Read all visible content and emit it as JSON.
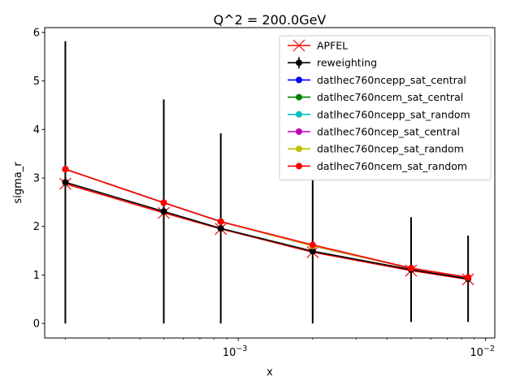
{
  "chart_data": {
    "type": "line",
    "title": "Q^2 = 200.0GeV",
    "xlabel": "x",
    "ylabel": "sigma_r",
    "xscale": "log",
    "xlim": [
      0.000165,
      0.0109
    ],
    "ylim": [
      -0.3,
      6.1
    ],
    "x": [
      0.0002,
      0.0005,
      0.00085,
      0.002,
      0.005,
      0.0085
    ],
    "x_tick_labels": [
      {
        "value": 0.001,
        "base": "10",
        "exp": "−3"
      },
      {
        "value": 0.01,
        "base": "10",
        "exp": "−2"
      }
    ],
    "y_ticks": [
      0,
      1,
      2,
      3,
      4,
      5,
      6
    ],
    "grid": false,
    "legend_position": "top-right",
    "series": [
      {
        "name": "APFEL",
        "color": "#ff0000",
        "marker": "x",
        "values": [
          2.88,
          2.28,
          1.95,
          1.47,
          1.09,
          0.91
        ]
      },
      {
        "name": "reweighting",
        "color": "#000000",
        "marker": "o",
        "values": [
          2.91,
          2.31,
          1.96,
          1.49,
          1.11,
          0.92
        ],
        "yerr": [
          2.91,
          2.31,
          1.96,
          1.49,
          1.08,
          0.89
        ]
      },
      {
        "name": "datlhec760ncepp_sat_central",
        "color": "#0000ff",
        "marker": "o",
        "values": [
          3.18,
          2.49,
          2.1,
          1.6,
          1.14,
          0.95
        ]
      },
      {
        "name": "datlhec760ncem_sat_central",
        "color": "#008000",
        "marker": "o",
        "values": [
          3.18,
          2.49,
          2.1,
          1.6,
          1.14,
          0.95
        ]
      },
      {
        "name": "datlhec760ncepp_sat_random",
        "color": "#00bfbf",
        "marker": "o",
        "values": [
          3.18,
          2.49,
          2.1,
          1.6,
          1.14,
          0.95
        ]
      },
      {
        "name": "datlhec760ncep_sat_central",
        "color": "#bf00bf",
        "marker": "o",
        "values": [
          3.18,
          2.49,
          2.1,
          1.6,
          1.14,
          0.95
        ]
      },
      {
        "name": "datlhec760ncep_sat_random",
        "color": "#bfbf00",
        "marker": "o",
        "values": [
          3.18,
          2.49,
          2.1,
          1.6,
          1.14,
          0.95
        ]
      },
      {
        "name": "datlhec760ncem_sat_random",
        "color": "#ff0000",
        "marker": "o",
        "values": [
          3.18,
          2.49,
          2.1,
          1.62,
          1.14,
          0.95
        ]
      }
    ]
  }
}
